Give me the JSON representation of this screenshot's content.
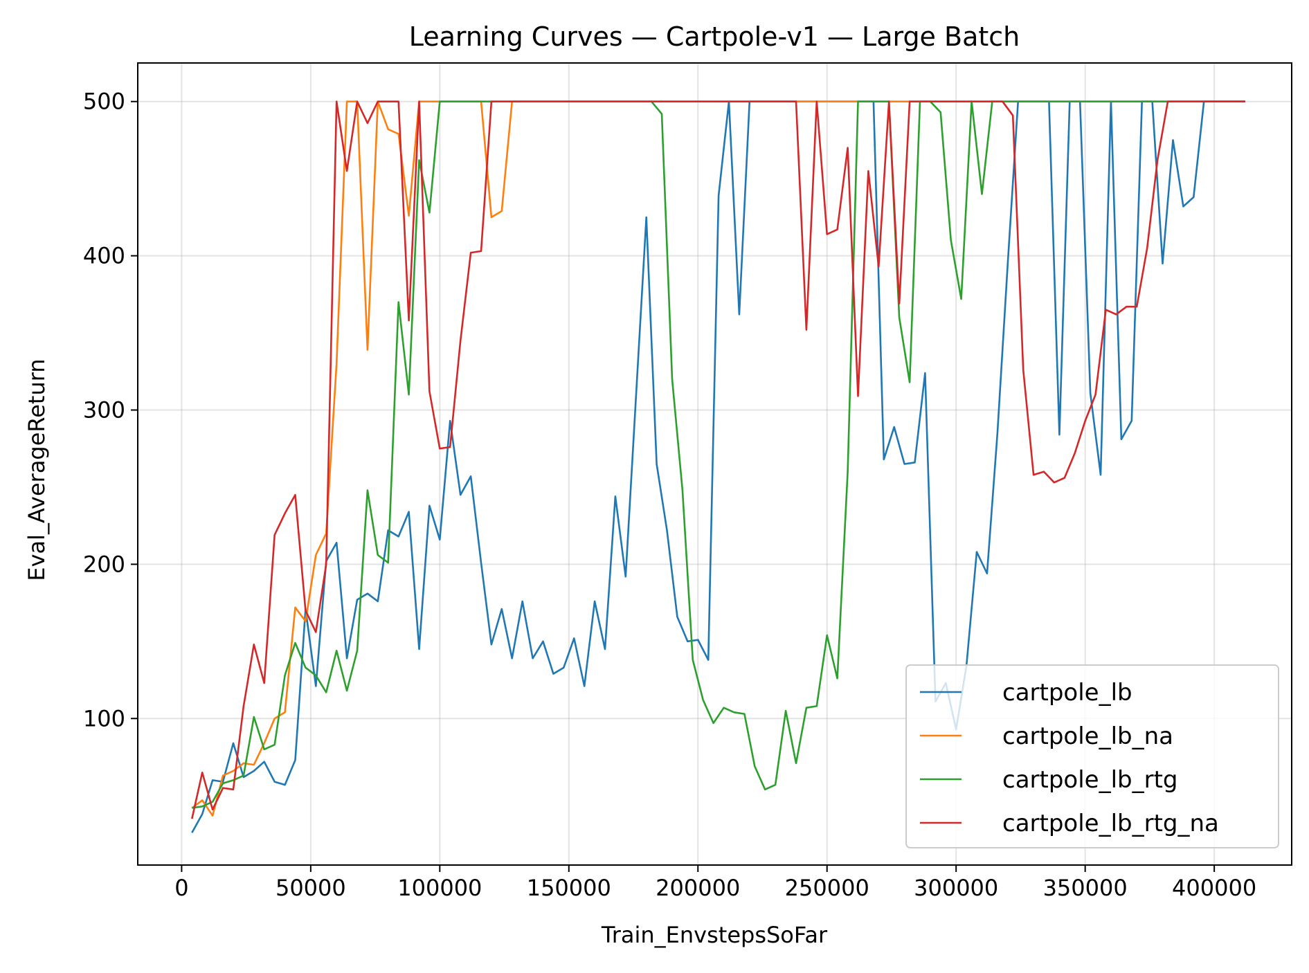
{
  "chart_data": {
    "type": "line",
    "title": "Learning Curves — Cartpole-v1 — Large Batch",
    "xlabel": "Train_EnvstepsSoFar",
    "ylabel": "Eval_AverageReturn",
    "xlim": [
      -17000,
      430000
    ],
    "ylim": [
      5,
      525
    ],
    "xticks": [
      0,
      50000,
      100000,
      150000,
      200000,
      250000,
      300000,
      350000,
      400000
    ],
    "xtick_labels": [
      "0",
      "50000",
      "100000",
      "150000",
      "200000",
      "250000",
      "300000",
      "350000",
      "400000"
    ],
    "yticks": [
      100,
      200,
      300,
      400,
      500
    ],
    "ytick_labels": [
      "100",
      "200",
      "300",
      "400",
      "500"
    ],
    "grid": true,
    "legend_position": "lower-right",
    "series": [
      {
        "name": "cartpole_lb",
        "color": "#1f77b4",
        "points": [
          [
            4000,
            26
          ],
          [
            8000,
            38
          ],
          [
            12000,
            60
          ],
          [
            16000,
            59
          ],
          [
            20000,
            84
          ],
          [
            24000,
            62
          ],
          [
            28000,
            66
          ],
          [
            32000,
            72
          ],
          [
            36000,
            59
          ],
          [
            40000,
            57
          ],
          [
            44000,
            73
          ],
          [
            48000,
            171
          ],
          [
            52000,
            121
          ],
          [
            56000,
            202
          ],
          [
            60000,
            214
          ],
          [
            64000,
            139
          ],
          [
            68000,
            177
          ],
          [
            72000,
            181
          ],
          [
            76000,
            176
          ],
          [
            80000,
            222
          ],
          [
            84000,
            218
          ],
          [
            88000,
            234
          ],
          [
            92000,
            145
          ],
          [
            96000,
            238
          ],
          [
            100000,
            216
          ],
          [
            104000,
            293
          ],
          [
            108000,
            245
          ],
          [
            112000,
            257
          ],
          [
            116000,
            201
          ],
          [
            120000,
            148
          ],
          [
            124000,
            171
          ],
          [
            128000,
            139
          ],
          [
            132000,
            176
          ],
          [
            136000,
            139
          ],
          [
            140000,
            150
          ],
          [
            144000,
            129
          ],
          [
            148000,
            133
          ],
          [
            152000,
            152
          ],
          [
            156000,
            121
          ],
          [
            160000,
            176
          ],
          [
            164000,
            145
          ],
          [
            168000,
            244
          ],
          [
            172000,
            192
          ],
          [
            180000,
            425
          ],
          [
            184000,
            265
          ],
          [
            188000,
            222
          ],
          [
            192000,
            166
          ],
          [
            196000,
            150
          ],
          [
            200000,
            151
          ],
          [
            204000,
            138
          ],
          [
            208000,
            439
          ],
          [
            212000,
            500
          ],
          [
            216000,
            362
          ],
          [
            220000,
            500
          ],
          [
            224000,
            500
          ],
          [
            228000,
            500
          ],
          [
            232000,
            500
          ],
          [
            236000,
            500
          ],
          [
            240000,
            500
          ],
          [
            244000,
            500
          ],
          [
            248000,
            500
          ],
          [
            252000,
            500
          ],
          [
            256000,
            500
          ],
          [
            260000,
            500
          ],
          [
            264000,
            500
          ],
          [
            268000,
            500
          ],
          [
            272000,
            268
          ],
          [
            276000,
            289
          ],
          [
            280000,
            265
          ],
          [
            284000,
            266
          ],
          [
            288000,
            324
          ],
          [
            292000,
            111
          ],
          [
            296000,
            123
          ],
          [
            300000,
            93
          ],
          [
            304000,
            134
          ],
          [
            308000,
            208
          ],
          [
            312000,
            194
          ],
          [
            316000,
            285
          ],
          [
            320000,
            395
          ],
          [
            324000,
            500
          ],
          [
            328000,
            500
          ],
          [
            332000,
            500
          ],
          [
            336000,
            500
          ],
          [
            340000,
            284
          ],
          [
            344000,
            500
          ],
          [
            348000,
            500
          ],
          [
            352000,
            311
          ],
          [
            356000,
            258
          ],
          [
            360000,
            500
          ],
          [
            364000,
            281
          ],
          [
            368000,
            293
          ],
          [
            372000,
            500
          ],
          [
            376000,
            500
          ],
          [
            380000,
            395
          ],
          [
            384000,
            475
          ],
          [
            388000,
            432
          ],
          [
            392000,
            438
          ],
          [
            396000,
            500
          ],
          [
            400000,
            500
          ],
          [
            404000,
            500
          ],
          [
            408000,
            500
          ],
          [
            412000,
            500
          ]
        ]
      },
      {
        "name": "cartpole_lb_na",
        "color": "#ff7f0e",
        "points": [
          [
            4000,
            42
          ],
          [
            8000,
            47
          ],
          [
            12000,
            37
          ],
          [
            16000,
            63
          ],
          [
            20000,
            66
          ],
          [
            24000,
            71
          ],
          [
            28000,
            70
          ],
          [
            32000,
            84
          ],
          [
            36000,
            100
          ],
          [
            40000,
            104
          ],
          [
            44000,
            172
          ],
          [
            48000,
            163
          ],
          [
            52000,
            206
          ],
          [
            56000,
            220
          ],
          [
            60000,
            330
          ],
          [
            64000,
            500
          ],
          [
            68000,
            500
          ],
          [
            72000,
            339
          ],
          [
            76000,
            500
          ],
          [
            80000,
            482
          ],
          [
            84000,
            479
          ],
          [
            88000,
            426
          ],
          [
            92000,
            500
          ],
          [
            96000,
            500
          ],
          [
            100000,
            500
          ],
          [
            104000,
            500
          ],
          [
            108000,
            500
          ],
          [
            112000,
            500
          ],
          [
            116000,
            500
          ],
          [
            120000,
            425
          ],
          [
            124000,
            429
          ],
          [
            128000,
            500
          ],
          [
            132000,
            500
          ],
          [
            160000,
            500
          ],
          [
            200000,
            500
          ],
          [
            250000,
            500
          ],
          [
            300000,
            500
          ],
          [
            350000,
            500
          ],
          [
            400000,
            500
          ],
          [
            412000,
            500
          ]
        ]
      },
      {
        "name": "cartpole_lb_rtg",
        "color": "#2ca02c",
        "points": [
          [
            4000,
            42
          ],
          [
            8000,
            43
          ],
          [
            12000,
            46
          ],
          [
            16000,
            58
          ],
          [
            20000,
            60
          ],
          [
            24000,
            63
          ],
          [
            28000,
            101
          ],
          [
            32000,
            80
          ],
          [
            36000,
            83
          ],
          [
            40000,
            128
          ],
          [
            44000,
            149
          ],
          [
            48000,
            133
          ],
          [
            52000,
            128
          ],
          [
            56000,
            117
          ],
          [
            60000,
            144
          ],
          [
            64000,
            118
          ],
          [
            68000,
            144
          ],
          [
            72000,
            248
          ],
          [
            76000,
            206
          ],
          [
            80000,
            201
          ],
          [
            84000,
            370
          ],
          [
            88000,
            310
          ],
          [
            92000,
            462
          ],
          [
            96000,
            428
          ],
          [
            100000,
            500
          ],
          [
            104000,
            500
          ],
          [
            150000,
            500
          ],
          [
            182000,
            500
          ],
          [
            186000,
            492
          ],
          [
            190000,
            320
          ],
          [
            194000,
            248
          ],
          [
            198000,
            138
          ],
          [
            202000,
            112
          ],
          [
            206000,
            97
          ],
          [
            210000,
            107
          ],
          [
            214000,
            104
          ],
          [
            218000,
            103
          ],
          [
            222000,
            69
          ],
          [
            226000,
            54
          ],
          [
            230000,
            57
          ],
          [
            234000,
            105
          ],
          [
            238000,
            71
          ],
          [
            242000,
            107
          ],
          [
            246000,
            108
          ],
          [
            250000,
            154
          ],
          [
            254000,
            126
          ],
          [
            258000,
            260
          ],
          [
            262000,
            500
          ],
          [
            266000,
            500
          ],
          [
            270000,
            500
          ],
          [
            274000,
            500
          ],
          [
            278000,
            360
          ],
          [
            282000,
            318
          ],
          [
            286000,
            500
          ],
          [
            290000,
            500
          ],
          [
            294000,
            493
          ],
          [
            298000,
            410
          ],
          [
            302000,
            372
          ],
          [
            306000,
            500
          ],
          [
            310000,
            440
          ],
          [
            314000,
            500
          ],
          [
            318000,
            500
          ],
          [
            350000,
            500
          ],
          [
            400000,
            500
          ],
          [
            412000,
            500
          ]
        ]
      },
      {
        "name": "cartpole_lb_rtg_na",
        "color": "#d62728",
        "points": [
          [
            4000,
            35
          ],
          [
            8000,
            65
          ],
          [
            12000,
            41
          ],
          [
            16000,
            55
          ],
          [
            20000,
            54
          ],
          [
            24000,
            108
          ],
          [
            28000,
            148
          ],
          [
            32000,
            123
          ],
          [
            36000,
            219
          ],
          [
            40000,
            233
          ],
          [
            44000,
            245
          ],
          [
            48000,
            170
          ],
          [
            52000,
            156
          ],
          [
            56000,
            200
          ],
          [
            60000,
            500
          ],
          [
            64000,
            455
          ],
          [
            68000,
            500
          ],
          [
            72000,
            486
          ],
          [
            76000,
            500
          ],
          [
            80000,
            500
          ],
          [
            84000,
            500
          ],
          [
            88000,
            358
          ],
          [
            92000,
            500
          ],
          [
            96000,
            312
          ],
          [
            100000,
            275
          ],
          [
            104000,
            276
          ],
          [
            108000,
            345
          ],
          [
            112000,
            402
          ],
          [
            116000,
            403
          ],
          [
            120000,
            500
          ],
          [
            124000,
            500
          ],
          [
            160000,
            500
          ],
          [
            200000,
            500
          ],
          [
            238000,
            500
          ],
          [
            242000,
            352
          ],
          [
            246000,
            500
          ],
          [
            250000,
            414
          ],
          [
            254000,
            417
          ],
          [
            258000,
            470
          ],
          [
            262000,
            309
          ],
          [
            266000,
            455
          ],
          [
            270000,
            393
          ],
          [
            274000,
            500
          ],
          [
            278000,
            369
          ],
          [
            282000,
            500
          ],
          [
            286000,
            500
          ],
          [
            318000,
            500
          ],
          [
            322000,
            491
          ],
          [
            326000,
            326
          ],
          [
            330000,
            258
          ],
          [
            334000,
            260
          ],
          [
            338000,
            253
          ],
          [
            342000,
            256
          ],
          [
            346000,
            272
          ],
          [
            350000,
            293
          ],
          [
            354000,
            310
          ],
          [
            358000,
            365
          ],
          [
            362000,
            362
          ],
          [
            366000,
            367
          ],
          [
            370000,
            367
          ],
          [
            374000,
            405
          ],
          [
            378000,
            462
          ],
          [
            382000,
            500
          ],
          [
            386000,
            500
          ],
          [
            400000,
            500
          ],
          [
            412000,
            500
          ]
        ]
      }
    ]
  }
}
